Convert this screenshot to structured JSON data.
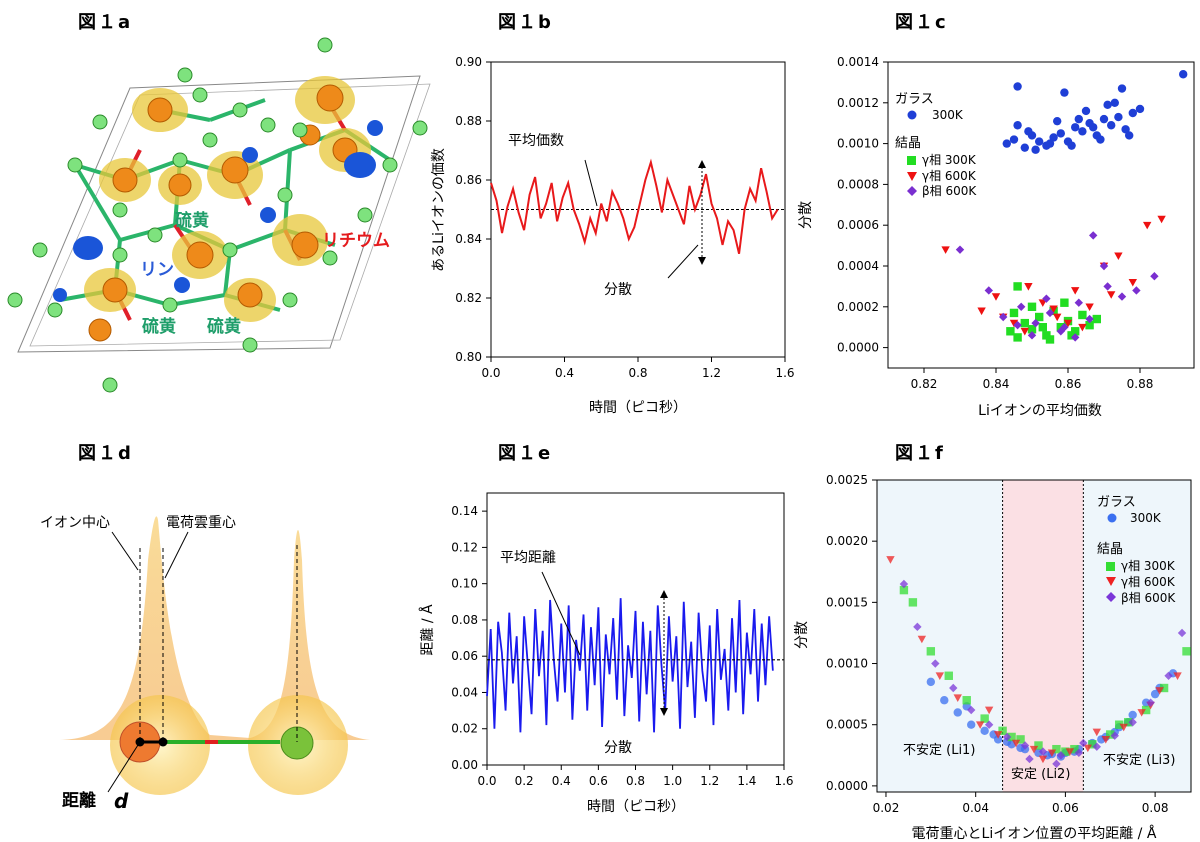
{
  "panels": {
    "a": {
      "title": "図１a",
      "labels": {
        "sulfur1": "硫黄",
        "sulfur2": "硫黄",
        "sulfur3": "硫黄",
        "phosphorus": "リン",
        "lithium": "リチウム"
      },
      "colors": {
        "sulfur": "#1f9e6a",
        "phosphorus": "#2a5bd7",
        "lithium": "#e41a1c"
      }
    },
    "b": {
      "title": "図１b",
      "annot_mean": "平均価数",
      "annot_var": "分散"
    },
    "c": {
      "title": "図１c"
    },
    "d": {
      "title": "図１d",
      "label_ion_center": "イオン中心",
      "label_charge_center": "電荷雲重心",
      "label_distance": "距離",
      "label_d": "d"
    },
    "e": {
      "title": "図１e",
      "annot_mean": "平均距離",
      "annot_var": "分散"
    },
    "f": {
      "title": "図１f",
      "region_left": "不安定 (Li1)",
      "region_mid": "安定 (Li2)",
      "region_right": "不安定 (Li3)"
    }
  },
  "chart_data": [
    {
      "id": "b",
      "type": "line",
      "xlabel": "時間（ピコ秒）",
      "ylabel": "あるLiイオンの価数",
      "xlim": [
        0,
        1.6
      ],
      "ylim": [
        0.8,
        0.9
      ],
      "xticks": [
        "0.0",
        "0.4",
        "0.8",
        "1.2",
        "1.6"
      ],
      "yticks": [
        "0.80",
        "0.82",
        "0.84",
        "0.86",
        "0.88",
        "0.90"
      ],
      "mean": 0.85,
      "color": "#e8191b",
      "series": [
        {
          "x": [
            0.0,
            0.03,
            0.06,
            0.09,
            0.12,
            0.15,
            0.18,
            0.21,
            0.24,
            0.27,
            0.3,
            0.33,
            0.36,
            0.39,
            0.42,
            0.45,
            0.48,
            0.51,
            0.54,
            0.57,
            0.6,
            0.63,
            0.66,
            0.69,
            0.72,
            0.75,
            0.78,
            0.81,
            0.84,
            0.87,
            0.9,
            0.93,
            0.96,
            0.99,
            1.02,
            1.05,
            1.08,
            1.11,
            1.14,
            1.17,
            1.2,
            1.23,
            1.26,
            1.29,
            1.32,
            1.35,
            1.38,
            1.41,
            1.44,
            1.47,
            1.5,
            1.53,
            1.56
          ],
          "values": [
            0.859,
            0.853,
            0.842,
            0.851,
            0.857,
            0.849,
            0.843,
            0.855,
            0.861,
            0.847,
            0.852,
            0.859,
            0.846,
            0.854,
            0.859,
            0.85,
            0.845,
            0.839,
            0.847,
            0.842,
            0.852,
            0.846,
            0.856,
            0.852,
            0.847,
            0.84,
            0.844,
            0.852,
            0.86,
            0.866,
            0.858,
            0.849,
            0.86,
            0.855,
            0.85,
            0.845,
            0.858,
            0.85,
            0.855,
            0.862,
            0.852,
            0.847,
            0.838,
            0.846,
            0.843,
            0.835,
            0.85,
            0.857,
            0.853,
            0.864,
            0.856,
            0.847,
            0.85
          ]
        }
      ]
    },
    {
      "id": "c",
      "type": "scatter",
      "xlabel": "Liイオンの平均価数",
      "ylabel": "分散",
      "xlim": [
        0.81,
        0.895
      ],
      "ylim": [
        -0.0001,
        0.0014
      ],
      "xticks": [
        "0.82",
        "0.84",
        "0.86",
        "0.88"
      ],
      "yticks": [
        "0.0000",
        "0.0002",
        "0.0004",
        "0.0006",
        "0.0008",
        "0.0010",
        "0.0012",
        "0.0014"
      ],
      "legend": {
        "group1": "ガラス",
        "group2": "結晶"
      },
      "series": [
        {
          "name": "300K",
          "group": "ガラス",
          "marker": "circle",
          "color": "#1f3fd6",
          "x": [
            0.843,
            0.845,
            0.848,
            0.85,
            0.852,
            0.854,
            0.856,
            0.858,
            0.86,
            0.862,
            0.864,
            0.866,
            0.868,
            0.87,
            0.872,
            0.874,
            0.876,
            0.878,
            0.846,
            0.851,
            0.857,
            0.861,
            0.865,
            0.869,
            0.873,
            0.849,
            0.855,
            0.863,
            0.871,
            0.877,
            0.88,
            0.892,
            0.846,
            0.859,
            0.867,
            0.875
          ],
          "y": [
            0.001,
            0.00102,
            0.00098,
            0.00104,
            0.00101,
            0.00099,
            0.00103,
            0.00105,
            0.00101,
            0.00108,
            0.00106,
            0.0011,
            0.00104,
            0.00112,
            0.00109,
            0.00113,
            0.00107,
            0.00115,
            0.00109,
            0.00097,
            0.00111,
            0.00099,
            0.00116,
            0.00102,
            0.0012,
            0.00106,
            0.001,
            0.00112,
            0.00119,
            0.00104,
            0.00117,
            0.00134,
            0.00128,
            0.00125,
            0.00108,
            0.00127
          ]
        },
        {
          "name": "γ相 300K",
          "group": "結晶",
          "marker": "square",
          "color": "#22dd22",
          "x": [
            0.844,
            0.846,
            0.848,
            0.85,
            0.852,
            0.854,
            0.856,
            0.858,
            0.86,
            0.862,
            0.864,
            0.866,
            0.868,
            0.846,
            0.85,
            0.855,
            0.859,
            0.845,
            0.853,
            0.861
          ],
          "y": [
            8e-05,
            5e-05,
            0.00012,
            9e-05,
            0.00015,
            6e-05,
            0.00018,
            0.0001,
            0.00013,
            8e-05,
            0.00016,
            0.00011,
            0.00014,
            0.0003,
            0.0002,
            4e-05,
            0.00022,
            0.00017,
            0.0001,
            6e-05
          ]
        },
        {
          "name": "γ相 600K",
          "group": "結晶",
          "marker": "triangle-down",
          "color": "#ee1111",
          "x": [
            0.826,
            0.836,
            0.84,
            0.845,
            0.849,
            0.853,
            0.857,
            0.862,
            0.866,
            0.87,
            0.874,
            0.878,
            0.882,
            0.886,
            0.848,
            0.856,
            0.864,
            0.872,
            0.842,
            0.86
          ],
          "y": [
            0.00048,
            0.00018,
            0.00025,
            0.00012,
            0.0003,
            0.00022,
            0.00015,
            0.00028,
            0.0002,
            0.0004,
            0.00045,
            0.00032,
            0.0006,
            0.00063,
            8e-05,
            0.00019,
            0.0001,
            0.00026,
            0.00015,
            0.00012
          ]
        },
        {
          "name": "β相 600K",
          "group": "結晶",
          "marker": "diamond",
          "color": "#7a2fd0",
          "x": [
            0.83,
            0.838,
            0.842,
            0.847,
            0.851,
            0.855,
            0.859,
            0.863,
            0.867,
            0.871,
            0.875,
            0.879,
            0.884,
            0.85,
            0.858,
            0.866,
            0.854,
            0.862,
            0.846,
            0.87
          ],
          "y": [
            0.00048,
            0.00028,
            0.00015,
            0.0002,
            0.00012,
            0.00017,
            0.0001,
            0.00022,
            0.00055,
            0.0003,
            0.00025,
            0.00028,
            0.00035,
            6e-05,
            8e-05,
            0.00014,
            0.00024,
            5e-05,
            0.00011,
            0.0004
          ]
        }
      ]
    },
    {
      "id": "e",
      "type": "line",
      "xlabel": "時間（ピコ秒）",
      "ylabel": "距離 / Å",
      "xlim": [
        0,
        1.6
      ],
      "ylim": [
        0,
        0.15
      ],
      "xticks": [
        "0.0",
        "0.2",
        "0.4",
        "0.6",
        "0.8",
        "1.0",
        "1.2",
        "1.4",
        "1.6"
      ],
      "yticks": [
        "0.00",
        "0.02",
        "0.04",
        "0.06",
        "0.08",
        "0.10",
        "0.12",
        "0.14"
      ],
      "mean": 0.058,
      "color": "#1a1aee",
      "series": [
        {
          "x": [
            0.0,
            0.02,
            0.04,
            0.06,
            0.08,
            0.1,
            0.12,
            0.14,
            0.16,
            0.18,
            0.2,
            0.22,
            0.24,
            0.26,
            0.28,
            0.3,
            0.32,
            0.34,
            0.36,
            0.38,
            0.4,
            0.42,
            0.44,
            0.46,
            0.48,
            0.5,
            0.52,
            0.54,
            0.56,
            0.58,
            0.6,
            0.62,
            0.64,
            0.66,
            0.68,
            0.7,
            0.72,
            0.74,
            0.76,
            0.78,
            0.8,
            0.82,
            0.84,
            0.86,
            0.88,
            0.9,
            0.92,
            0.94,
            0.96,
            0.98,
            1.0,
            1.02,
            1.04,
            1.06,
            1.08,
            1.1,
            1.12,
            1.14,
            1.16,
            1.18,
            1.2,
            1.22,
            1.24,
            1.26,
            1.28,
            1.3,
            1.32,
            1.34,
            1.36,
            1.38,
            1.4,
            1.42,
            1.44,
            1.46,
            1.48,
            1.5,
            1.52,
            1.54
          ],
          "values": [
            0.038,
            0.075,
            0.02,
            0.079,
            0.062,
            0.03,
            0.084,
            0.045,
            0.071,
            0.018,
            0.082,
            0.055,
            0.028,
            0.086,
            0.049,
            0.074,
            0.022,
            0.091,
            0.058,
            0.035,
            0.078,
            0.04,
            0.088,
            0.025,
            0.069,
            0.052,
            0.083,
            0.03,
            0.076,
            0.044,
            0.087,
            0.021,
            0.072,
            0.05,
            0.081,
            0.036,
            0.092,
            0.027,
            0.066,
            0.048,
            0.085,
            0.024,
            0.079,
            0.039,
            0.074,
            0.018,
            0.088,
            0.055,
            0.03,
            0.082,
            0.046,
            0.071,
            0.02,
            0.09,
            0.043,
            0.068,
            0.026,
            0.084,
            0.052,
            0.035,
            0.077,
            0.022,
            0.086,
            0.047,
            0.064,
            0.03,
            0.081,
            0.04,
            0.091,
            0.028,
            0.073,
            0.05,
            0.086,
            0.035,
            0.078,
            0.044,
            0.082,
            0.052
          ]
        }
      ]
    },
    {
      "id": "f",
      "type": "scatter",
      "xlabel": "電荷重心とLiイオン位置の平均距離 / Å",
      "ylabel": "分散",
      "xlim": [
        0.018,
        0.088
      ],
      "ylim": [
        -5e-05,
        0.0025
      ],
      "xticks": [
        "0.02",
        "0.04",
        "0.06",
        "0.08"
      ],
      "yticks": [
        "0.0000",
        "0.0005",
        "0.0010",
        "0.0015",
        "0.0020",
        "0.0025"
      ],
      "regions": [
        0.046,
        0.064
      ],
      "legend": {
        "group1": "ガラス",
        "group2": "結晶"
      },
      "series": [
        {
          "name": "300K",
          "group": "ガラス",
          "marker": "circle",
          "color": "#3a6ff0",
          "x": [
            0.03,
            0.033,
            0.036,
            0.039,
            0.042,
            0.045,
            0.048,
            0.051,
            0.054,
            0.057,
            0.06,
            0.063,
            0.066,
            0.069,
            0.072,
            0.075,
            0.078,
            0.081,
            0.084,
            0.038,
            0.044,
            0.05,
            0.056,
            0.062,
            0.068,
            0.074,
            0.08,
            0.047,
            0.059,
            0.071
          ],
          "y": [
            0.00085,
            0.0007,
            0.0006,
            0.0005,
            0.00045,
            0.00038,
            0.00034,
            0.0003,
            0.00027,
            0.00026,
            0.00027,
            0.0003,
            0.00035,
            0.0004,
            0.00048,
            0.00058,
            0.00068,
            0.0008,
            0.00092,
            0.00065,
            0.00042,
            0.00031,
            0.00025,
            0.00028,
            0.00038,
            0.00052,
            0.00075,
            0.00036,
            0.00024,
            0.00044
          ]
        },
        {
          "name": "γ相 300K",
          "group": "結晶",
          "marker": "square",
          "color": "#33dd33",
          "x": [
            0.024,
            0.026,
            0.03,
            0.034,
            0.038,
            0.042,
            0.046,
            0.05,
            0.054,
            0.058,
            0.062,
            0.066,
            0.07,
            0.074,
            0.078,
            0.082,
            0.087,
            0.048,
            0.06,
            0.072
          ],
          "y": [
            0.0016,
            0.0015,
            0.0011,
            0.0009,
            0.0007,
            0.00055,
            0.00045,
            0.00038,
            0.00033,
            0.0003,
            0.0003,
            0.00034,
            0.00042,
            0.00052,
            0.00062,
            0.0008,
            0.0011,
            0.0004,
            0.00028,
            0.0005
          ]
        },
        {
          "name": "γ相 600K",
          "group": "結晶",
          "marker": "triangle-down",
          "color": "#ee2222",
          "x": [
            0.021,
            0.028,
            0.032,
            0.036,
            0.041,
            0.045,
            0.049,
            0.053,
            0.057,
            0.061,
            0.065,
            0.069,
            0.073,
            0.077,
            0.081,
            0.085,
            0.043,
            0.055,
            0.067,
            0.079
          ],
          "y": [
            0.00185,
            0.0012,
            0.0009,
            0.00072,
            0.0005,
            0.00042,
            0.00035,
            0.0003,
            0.00027,
            0.00028,
            0.00031,
            0.00038,
            0.00048,
            0.0006,
            0.00078,
            0.0009,
            0.00062,
            0.00022,
            0.00044,
            0.00066
          ]
        },
        {
          "name": "β相 600K",
          "group": "結晶",
          "marker": "diamond",
          "color": "#7a35d8",
          "x": [
            0.024,
            0.027,
            0.031,
            0.035,
            0.039,
            0.043,
            0.047,
            0.051,
            0.055,
            0.059,
            0.063,
            0.067,
            0.071,
            0.075,
            0.079,
            0.083,
            0.086,
            0.052,
            0.058,
            0.064
          ],
          "y": [
            0.00165,
            0.0013,
            0.001,
            0.0008,
            0.00062,
            0.0005,
            0.0004,
            0.00033,
            0.00028,
            0.00025,
            0.00027,
            0.00032,
            0.00041,
            0.00052,
            0.00068,
            0.0009,
            0.00125,
            0.00022,
            0.00018,
            0.00035
          ]
        }
      ]
    }
  ]
}
